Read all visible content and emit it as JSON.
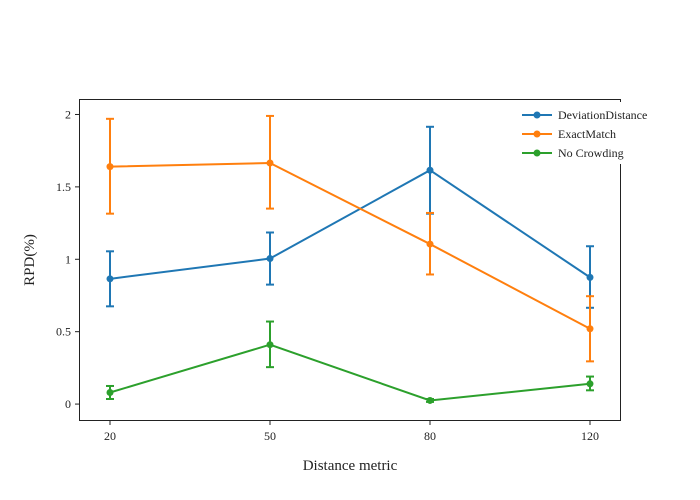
{
  "chart_data": {
    "type": "line",
    "xlabel": "Distance metric",
    "ylabel": "RPD(%)",
    "x": [
      20,
      50,
      80,
      120
    ],
    "xticks": [
      "20",
      "50",
      "80",
      "120"
    ],
    "yticks": [
      0,
      0.5,
      1,
      1.5,
      2
    ],
    "ytick_labels": [
      "0",
      "0.5",
      "1",
      "1.5",
      "2"
    ],
    "ylim": [
      -0.11,
      2.1
    ],
    "grid": false,
    "legend_position": "top-right",
    "series": [
      {
        "name": "DeviationDistance",
        "color": "#1f77b4",
        "values": [
          0.865,
          1.005,
          1.615,
          0.875
        ],
        "err_low": [
          0.675,
          0.825,
          1.315,
          0.665
        ],
        "err_high": [
          1.055,
          1.185,
          1.915,
          1.09
        ]
      },
      {
        "name": "ExactMatch",
        "color": "#ff7f0e",
        "values": [
          1.64,
          1.665,
          1.105,
          0.52
        ],
        "err_low": [
          1.315,
          1.35,
          0.895,
          0.295
        ],
        "err_high": [
          1.97,
          1.99,
          1.32,
          0.745
        ]
      },
      {
        "name": "No Crowding",
        "color": "#2ca02c",
        "values": [
          0.08,
          0.41,
          0.025,
          0.14
        ],
        "err_low": [
          0.035,
          0.255,
          0.015,
          0.095
        ],
        "err_high": [
          0.125,
          0.57,
          0.035,
          0.19
        ]
      }
    ]
  }
}
